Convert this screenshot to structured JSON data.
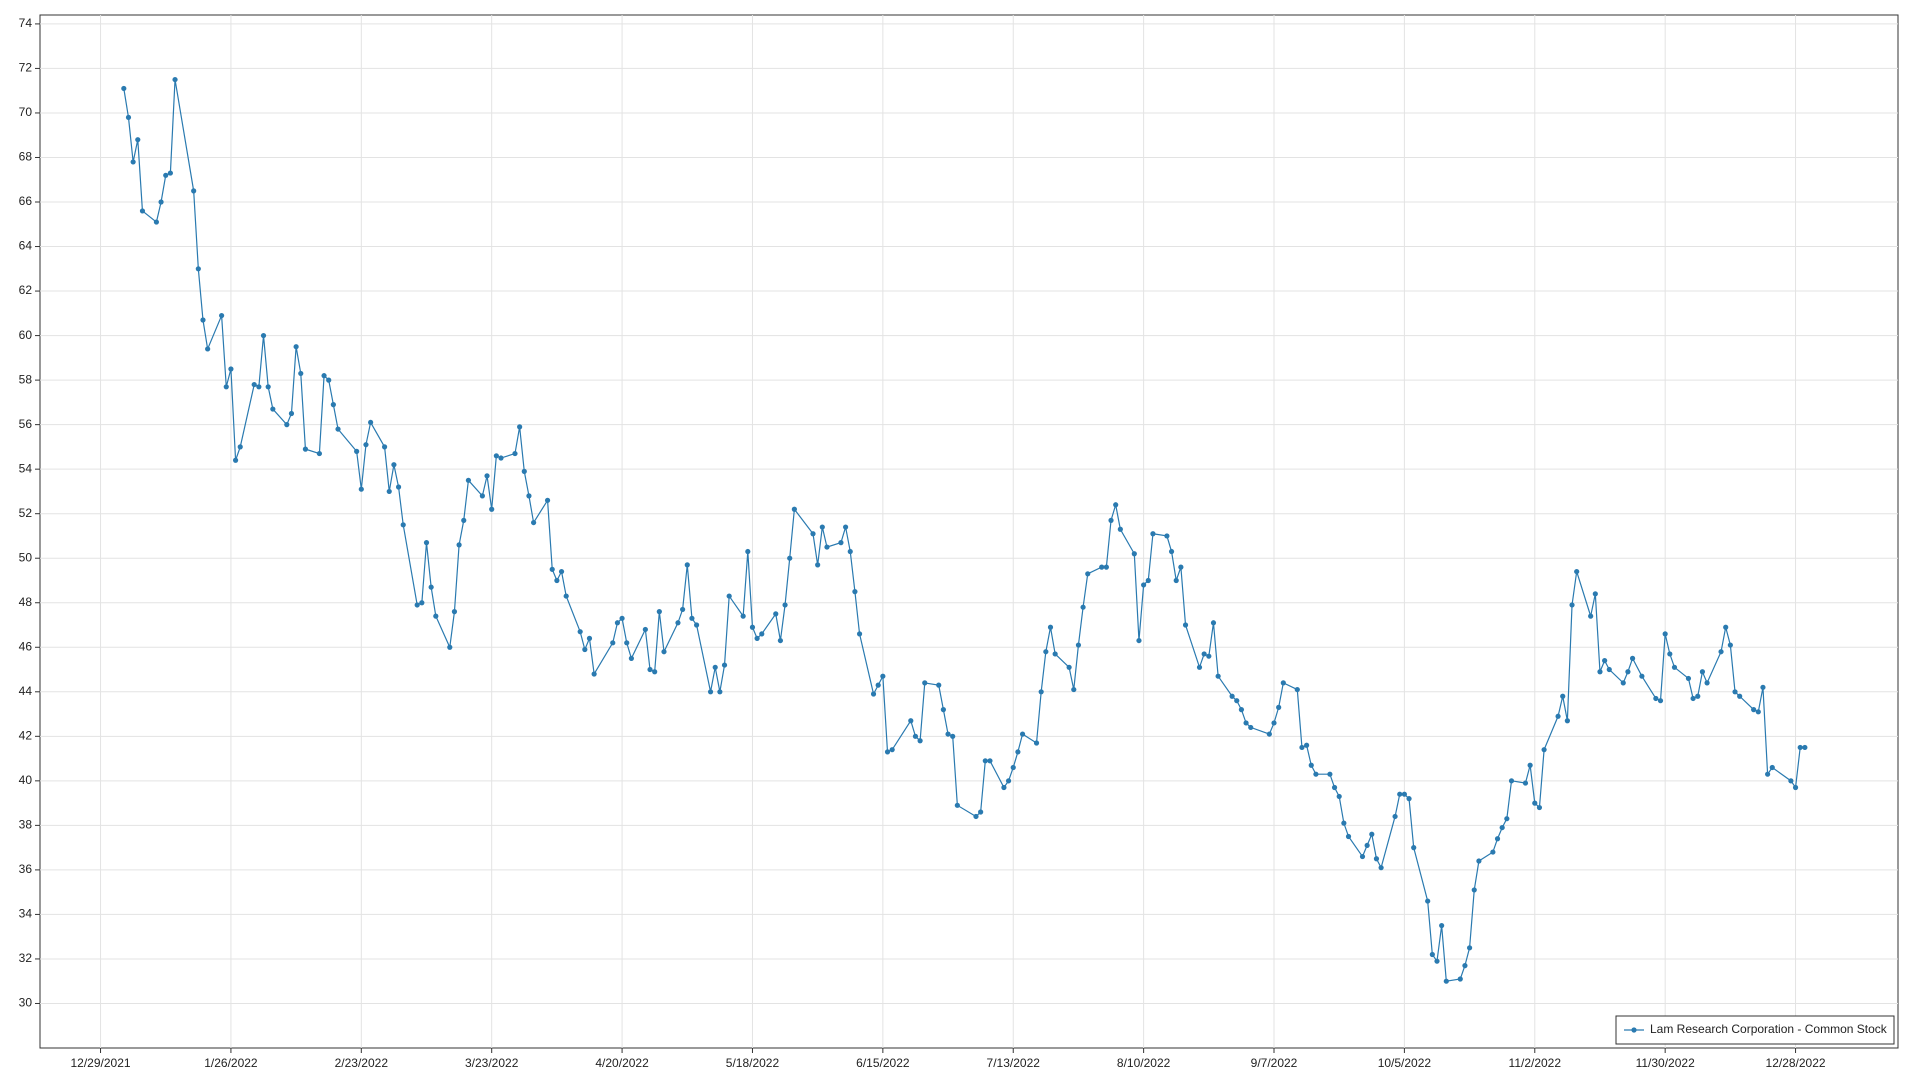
{
  "chart_data": {
    "type": "line",
    "x": [
      "1/3/2022",
      "1/4/2022",
      "1/5/2022",
      "1/6/2022",
      "1/7/2022",
      "1/10/2022",
      "1/11/2022",
      "1/12/2022",
      "1/13/2022",
      "1/14/2022",
      "1/18/2022",
      "1/19/2022",
      "1/20/2022",
      "1/21/2022",
      "1/24/2022",
      "1/25/2022",
      "1/26/2022",
      "1/27/2022",
      "1/28/2022",
      "1/31/2022",
      "2/1/2022",
      "2/2/2022",
      "2/3/2022",
      "2/4/2022",
      "2/7/2022",
      "2/8/2022",
      "2/9/2022",
      "2/10/2022",
      "2/11/2022",
      "2/14/2022",
      "2/15/2022",
      "2/16/2022",
      "2/17/2022",
      "2/18/2022",
      "2/22/2022",
      "2/23/2022",
      "2/24/2022",
      "2/25/2022",
      "2/28/2022",
      "3/1/2022",
      "3/2/2022",
      "3/3/2022",
      "3/4/2022",
      "3/7/2022",
      "3/8/2022",
      "3/9/2022",
      "3/10/2022",
      "3/11/2022",
      "3/14/2022",
      "3/15/2022",
      "3/16/2022",
      "3/17/2022",
      "3/18/2022",
      "3/21/2022",
      "3/22/2022",
      "3/23/2022",
      "3/24/2022",
      "3/25/2022",
      "3/28/2022",
      "3/29/2022",
      "3/30/2022",
      "3/31/2022",
      "4/1/2022",
      "4/4/2022",
      "4/5/2022",
      "4/6/2022",
      "4/7/2022",
      "4/8/2022",
      "4/11/2022",
      "4/12/2022",
      "4/13/2022",
      "4/14/2022",
      "4/18/2022",
      "4/19/2022",
      "4/20/2022",
      "4/21/2022",
      "4/22/2022",
      "4/25/2022",
      "4/26/2022",
      "4/27/2022",
      "4/28/2022",
      "4/29/2022",
      "5/2/2022",
      "5/3/2022",
      "5/4/2022",
      "5/5/2022",
      "5/6/2022",
      "5/9/2022",
      "5/10/2022",
      "5/11/2022",
      "5/12/2022",
      "5/13/2022",
      "5/16/2022",
      "5/17/2022",
      "5/18/2022",
      "5/19/2022",
      "5/20/2022",
      "5/23/2022",
      "5/24/2022",
      "5/25/2022",
      "5/26/2022",
      "5/27/2022",
      "5/31/2022",
      "6/1/2022",
      "6/2/2022",
      "6/3/2022",
      "6/6/2022",
      "6/7/2022",
      "6/8/2022",
      "6/9/2022",
      "6/10/2022",
      "6/13/2022",
      "6/14/2022",
      "6/15/2022",
      "6/16/2022",
      "6/17/2022",
      "6/21/2022",
      "6/22/2022",
      "6/23/2022",
      "6/24/2022",
      "6/27/2022",
      "6/28/2022",
      "6/29/2022",
      "6/30/2022",
      "7/1/2022",
      "7/5/2022",
      "7/6/2022",
      "7/7/2022",
      "7/8/2022",
      "7/11/2022",
      "7/12/2022",
      "7/13/2022",
      "7/14/2022",
      "7/15/2022",
      "7/18/2022",
      "7/19/2022",
      "7/20/2022",
      "7/21/2022",
      "7/22/2022",
      "7/25/2022",
      "7/26/2022",
      "7/27/2022",
      "7/28/2022",
      "7/29/2022",
      "8/1/2022",
      "8/2/2022",
      "8/3/2022",
      "8/4/2022",
      "8/5/2022",
      "8/8/2022",
      "8/9/2022",
      "8/10/2022",
      "8/11/2022",
      "8/12/2022",
      "8/15/2022",
      "8/16/2022",
      "8/17/2022",
      "8/18/2022",
      "8/19/2022",
      "8/22/2022",
      "8/23/2022",
      "8/24/2022",
      "8/25/2022",
      "8/26/2022",
      "8/29/2022",
      "8/30/2022",
      "8/31/2022",
      "9/1/2022",
      "9/2/2022",
      "9/6/2022",
      "9/7/2022",
      "9/8/2022",
      "9/9/2022",
      "9/12/2022",
      "9/13/2022",
      "9/14/2022",
      "9/15/2022",
      "9/16/2022",
      "9/19/2022",
      "9/20/2022",
      "9/21/2022",
      "9/22/2022",
      "9/23/2022",
      "9/26/2022",
      "9/27/2022",
      "9/28/2022",
      "9/29/2022",
      "9/30/2022",
      "10/3/2022",
      "10/4/2022",
      "10/5/2022",
      "10/6/2022",
      "10/7/2022",
      "10/10/2022",
      "10/11/2022",
      "10/12/2022",
      "10/13/2022",
      "10/14/2022",
      "10/17/2022",
      "10/18/2022",
      "10/19/2022",
      "10/20/2022",
      "10/21/2022",
      "10/24/2022",
      "10/25/2022",
      "10/26/2022",
      "10/27/2022",
      "10/28/2022",
      "10/31/2022",
      "11/1/2022",
      "11/2/2022",
      "11/3/2022",
      "11/4/2022",
      "11/7/2022",
      "11/8/2022",
      "11/9/2022",
      "11/10/2022",
      "11/11/2022",
      "11/14/2022",
      "11/15/2022",
      "11/16/2022",
      "11/17/2022",
      "11/18/2022",
      "11/21/2022",
      "11/22/2022",
      "11/23/2022",
      "11/25/2022",
      "11/28/2022",
      "11/29/2022",
      "11/30/2022",
      "12/1/2022",
      "12/2/2022",
      "12/5/2022",
      "12/6/2022",
      "12/7/2022",
      "12/8/2022",
      "12/9/2022",
      "12/12/2022",
      "12/13/2022",
      "12/14/2022",
      "12/15/2022",
      "12/16/2022",
      "12/19/2022",
      "12/20/2022",
      "12/21/2022",
      "12/22/2022",
      "12/23/2022",
      "12/27/2022",
      "12/28/2022",
      "12/29/2022",
      "12/30/2022"
    ],
    "series": [
      {
        "name": "Lam Research Corporation - Common Stock",
        "color": "#2a7ab0",
        "values": [
          71.1,
          69.8,
          67.8,
          68.8,
          65.6,
          65.1,
          66.0,
          67.2,
          67.3,
          71.5,
          66.5,
          63.0,
          60.7,
          59.4,
          60.9,
          57.7,
          58.5,
          54.4,
          55.0,
          57.8,
          57.7,
          60.0,
          57.7,
          56.7,
          56.0,
          56.5,
          59.5,
          58.3,
          54.9,
          54.7,
          58.2,
          58.0,
          56.9,
          55.8,
          54.8,
          53.1,
          55.1,
          56.1,
          55.0,
          53.0,
          54.2,
          53.2,
          51.5,
          47.9,
          48.0,
          50.7,
          48.7,
          47.4,
          46.0,
          47.6,
          50.6,
          51.7,
          53.5,
          52.8,
          53.7,
          52.2,
          54.6,
          54.5,
          54.7,
          55.9,
          53.9,
          52.8,
          51.6,
          52.6,
          49.5,
          49.0,
          49.4,
          48.3,
          46.7,
          45.9,
          46.4,
          44.8,
          46.2,
          47.1,
          47.3,
          46.2,
          45.5,
          46.8,
          45.0,
          44.9,
          47.6,
          45.8,
          47.1,
          47.7,
          49.7,
          47.3,
          47.0,
          44.0,
          45.1,
          44.0,
          45.2,
          48.3,
          47.4,
          50.3,
          46.9,
          46.4,
          46.6,
          47.5,
          46.3,
          47.9,
          50.0,
          52.2,
          51.1,
          49.7,
          51.4,
          50.5,
          50.7,
          51.4,
          50.3,
          48.5,
          46.6,
          43.9,
          44.3,
          44.7,
          41.3,
          41.4,
          42.7,
          42.0,
          41.8,
          44.4,
          44.3,
          43.2,
          42.1,
          42.0,
          38.9,
          38.4,
          38.6,
          40.9,
          40.9,
          39.7,
          40.0,
          40.6,
          41.3,
          42.1,
          41.7,
          44.0,
          45.8,
          46.9,
          45.7,
          45.1,
          44.1,
          46.1,
          47.8,
          49.3,
          49.6,
          49.6,
          51.7,
          52.4,
          51.3,
          50.2,
          46.3,
          48.8,
          49.0,
          51.1,
          51.0,
          50.3,
          49.0,
          49.6,
          47.0,
          45.1,
          45.7,
          45.6,
          47.1,
          44.7,
          43.8,
          43.6,
          43.2,
          42.6,
          42.4,
          42.1,
          42.6,
          43.3,
          44.4,
          44.1,
          41.5,
          41.6,
          40.7,
          40.3,
          40.3,
          39.7,
          39.3,
          38.1,
          37.5,
          36.6,
          37.1,
          37.6,
          36.5,
          36.1,
          38.4,
          39.4,
          39.4,
          39.2,
          37.0,
          34.6,
          32.2,
          31.9,
          33.5,
          31.0,
          31.1,
          31.7,
          32.5,
          35.1,
          36.4,
          36.8,
          37.4,
          37.9,
          38.3,
          40.0,
          39.9,
          40.7,
          39.0,
          38.8,
          41.4,
          42.9,
          43.8,
          42.7,
          47.9,
          49.4,
          47.4,
          48.4,
          44.9,
          45.4,
          45.0,
          44.4,
          44.9,
          45.5,
          44.7,
          43.7,
          43.6,
          46.6,
          45.7,
          45.1,
          44.6,
          43.7,
          43.8,
          44.9,
          44.4,
          45.8,
          46.9,
          46.1,
          44.0,
          43.8,
          43.2,
          43.1,
          44.2,
          40.3,
          40.6,
          40.0,
          39.7,
          41.5,
          41.5
        ]
      }
    ],
    "xlim": [
      "12/16/2021",
      "1/19/2023"
    ],
    "xticks": [
      "12/29/2021",
      "1/26/2022",
      "2/23/2022",
      "3/23/2022",
      "4/20/2022",
      "5/18/2022",
      "6/15/2022",
      "7/13/2022",
      "8/10/2022",
      "9/7/2022",
      "10/5/2022",
      "11/2/2022",
      "11/30/2022",
      "12/28/2022"
    ],
    "ylim": [
      28,
      74.4
    ],
    "yticks": [
      30,
      32,
      34,
      36,
      38,
      40,
      42,
      44,
      46,
      48,
      50,
      52,
      54,
      56,
      58,
      60,
      62,
      64,
      66,
      68,
      70,
      72,
      74
    ],
    "grid": true,
    "legend": "lower right",
    "markers": true
  }
}
